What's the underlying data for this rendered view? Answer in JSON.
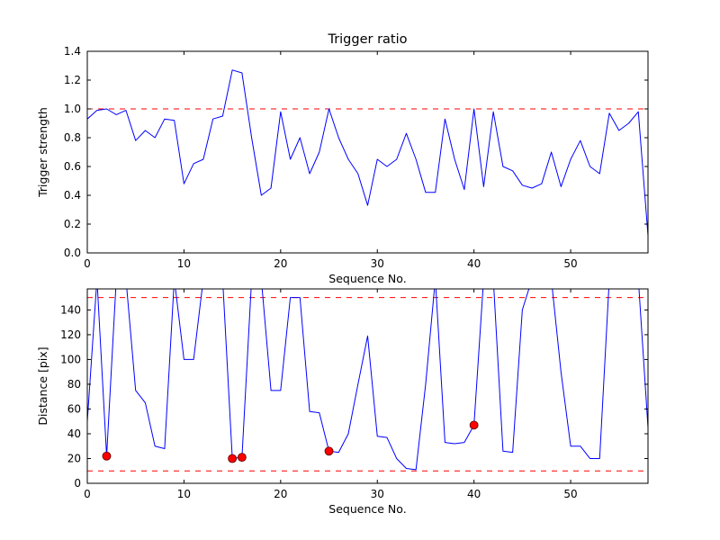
{
  "figure": {
    "background": "#ffffff",
    "line_color": "#0000ff",
    "threshold_color": "#ff0000",
    "marker_color": "#ff0000"
  },
  "chart_data": [
    {
      "type": "line",
      "title": "Trigger ratio",
      "xlabel": "Sequence No.",
      "ylabel": "Trigger strength",
      "xlim": [
        0,
        58
      ],
      "ylim": [
        0.0,
        1.4
      ],
      "xticks": [
        0,
        10,
        20,
        30,
        40,
        50
      ],
      "xtick_labels": [
        "0",
        "10",
        "20",
        "30",
        "40",
        "50"
      ],
      "yticks": [
        0.0,
        0.2,
        0.4,
        0.6,
        0.8,
        1.0,
        1.2,
        1.4
      ],
      "ytick_labels": [
        "0.0",
        "0.2",
        "0.4",
        "0.6",
        "0.8",
        "1.0",
        "1.2",
        "1.4"
      ],
      "grid": false,
      "legend": "none",
      "hlines": [
        {
          "y": 1.0,
          "color": "#ff0000",
          "style": "dashed",
          "name": "trigger-threshold-line"
        }
      ],
      "series": [
        {
          "name": "trigger-strength",
          "color": "#0000ff",
          "style": "solid",
          "y": [
            0.93,
            0.99,
            1.0,
            0.96,
            0.99,
            0.78,
            0.85,
            0.8,
            0.93,
            0.92,
            0.48,
            0.62,
            0.65,
            0.93,
            0.95,
            1.27,
            1.25,
            0.8,
            0.4,
            0.45,
            0.98,
            0.65,
            0.8,
            0.55,
            0.7,
            1.0,
            0.8,
            0.65,
            0.55,
            0.33,
            0.65,
            0.6,
            0.65,
            0.83,
            0.65,
            0.42,
            0.42,
            0.93,
            0.65,
            0.44,
            1.0,
            0.46,
            0.98,
            0.6,
            0.57,
            0.47,
            0.45,
            0.48,
            0.7,
            0.46,
            0.65,
            0.78,
            0.6,
            0.55,
            0.97,
            0.85,
            0.9,
            0.98,
            0.12
          ]
        }
      ]
    },
    {
      "type": "line",
      "title": "",
      "xlabel": "Sequence No.",
      "ylabel": "Distance [pix]",
      "xlim": [
        0,
        58
      ],
      "ylim": [
        0,
        157
      ],
      "xticks": [
        0,
        10,
        20,
        30,
        40,
        50
      ],
      "xtick_labels": [
        "0",
        "10",
        "20",
        "30",
        "40",
        "50"
      ],
      "yticks": [
        0,
        20,
        40,
        60,
        80,
        100,
        120,
        140
      ],
      "ytick_labels": [
        "0",
        "20",
        "40",
        "60",
        "80",
        "100",
        "120",
        "140"
      ],
      "grid": false,
      "legend": "none",
      "hlines": [
        {
          "y": 150,
          "color": "#ff0000",
          "style": "dashed",
          "name": "upper-distance-threshold-line"
        },
        {
          "y": 10,
          "color": "#ff0000",
          "style": "dashed",
          "name": "lower-distance-threshold-line"
        }
      ],
      "series": [
        {
          "name": "distance",
          "color": "#0000ff",
          "style": "solid",
          "y": [
            50,
            165,
            22,
            165,
            165,
            75,
            65,
            30,
            28,
            165,
            100,
            100,
            165,
            165,
            165,
            20,
            21,
            165,
            165,
            75,
            75,
            150,
            150,
            58,
            57,
            26,
            25,
            40,
            80,
            119,
            38,
            37,
            20,
            12,
            11,
            80,
            165,
            33,
            32,
            33,
            47,
            165,
            165,
            26,
            25,
            140,
            165,
            165,
            165,
            90,
            30,
            30,
            20,
            20,
            165,
            165,
            165,
            165,
            45
          ]
        }
      ],
      "markers": [
        {
          "name": "trigger-event",
          "color": "#ff0000",
          "shape": "circle",
          "points": [
            [
              2,
              22
            ],
            [
              15,
              20
            ],
            [
              16,
              21
            ],
            [
              25,
              26
            ],
            [
              40,
              47
            ]
          ]
        }
      ]
    }
  ]
}
